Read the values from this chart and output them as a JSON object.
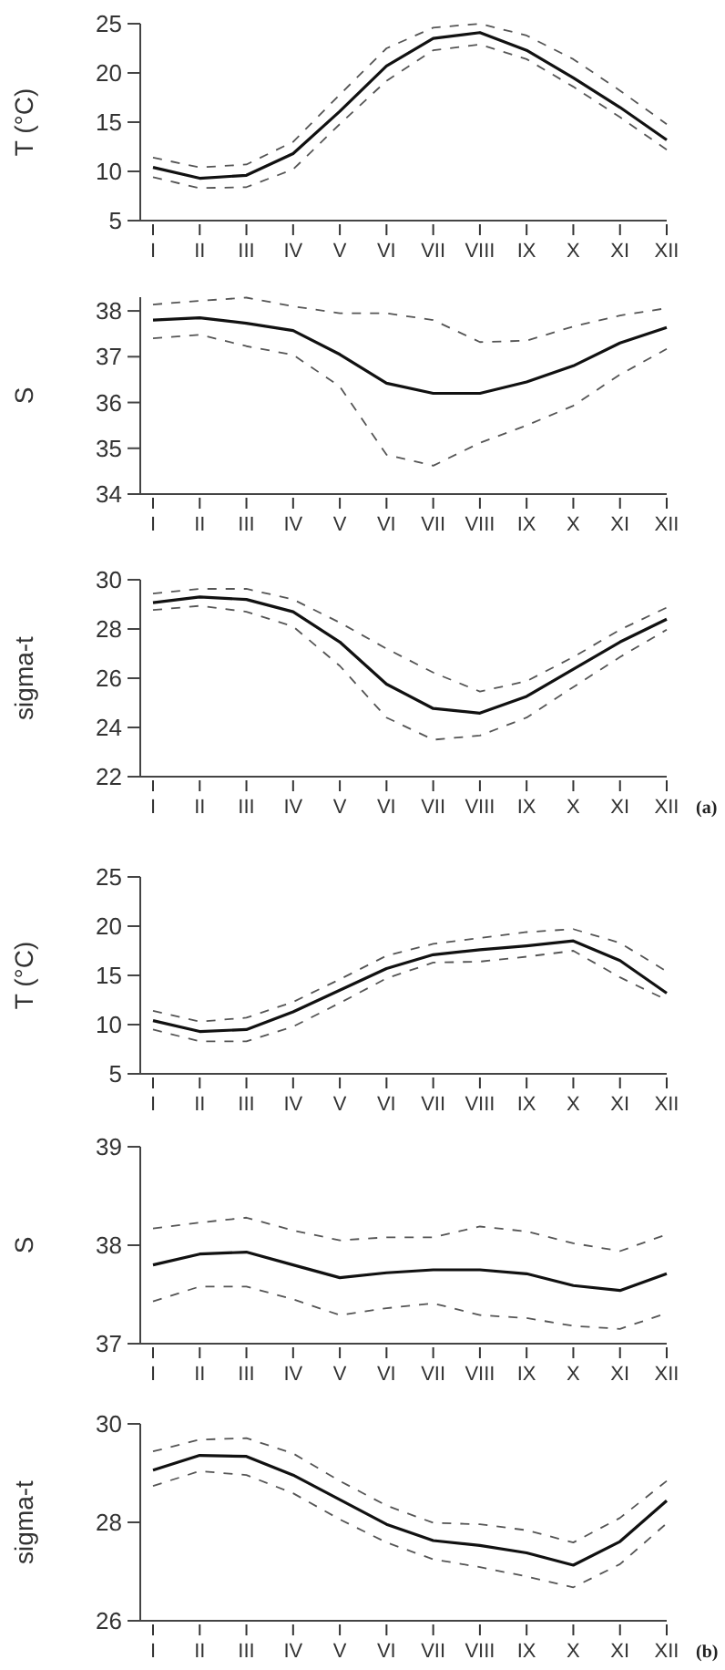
{
  "chart_data": [
    {
      "type": "line",
      "ylabel": "T (°C)",
      "categories": [
        "I",
        "II",
        "III",
        "IV",
        "V",
        "VI",
        "VII",
        "VIII",
        "IX",
        "X",
        "XI",
        "XII"
      ],
      "ylim": [
        5,
        25
      ],
      "yticks": [
        5,
        10,
        15,
        20,
        25
      ],
      "series": [
        {
          "color": "#111111",
          "line_style": "solid",
          "values": [
            10.4,
            9.3,
            9.6,
            11.8,
            16.1,
            20.7,
            23.5,
            24.1,
            22.3,
            19.5,
            16.5,
            13.2
          ]
        },
        {
          "color": "#555555",
          "line_style": "dashed",
          "values": [
            11.4,
            10.4,
            10.7,
            13,
            17.8,
            22.5,
            24.6,
            25,
            23.8,
            21.4,
            18.2,
            14.8
          ]
        },
        {
          "color": "#555555",
          "line_style": "dashed",
          "values": [
            9.4,
            8.3,
            8.4,
            10.2,
            14.8,
            19.2,
            22.3,
            22.9,
            21.4,
            18.6,
            15.5,
            12.2
          ]
        }
      ]
    },
    {
      "type": "line",
      "ylabel": "S",
      "categories": [
        "I",
        "II",
        "III",
        "IV",
        "V",
        "VI",
        "VII",
        "VIII",
        "IX",
        "X",
        "XI",
        "XII"
      ],
      "ylim": [
        34,
        38.3
      ],
      "yticks": [
        34,
        35,
        36,
        37,
        38
      ],
      "series": [
        {
          "color": "#111111",
          "line_style": "solid",
          "values": [
            37.8,
            37.85,
            37.73,
            37.57,
            37.05,
            36.42,
            36.2,
            36.2,
            36.45,
            36.8,
            37.3,
            37.64
          ]
        },
        {
          "color": "#555555",
          "line_style": "dashed",
          "values": [
            38.14,
            38.22,
            38.29,
            38.1,
            37.95,
            37.95,
            37.8,
            37.32,
            37.35,
            37.66,
            37.9,
            38.06
          ]
        },
        {
          "color": "#555555",
          "line_style": "dashed",
          "values": [
            37.4,
            37.48,
            37.23,
            37.04,
            36.35,
            34.86,
            34.62,
            35.12,
            35.5,
            35.93,
            36.61,
            37.17
          ]
        }
      ]
    },
    {
      "type": "line",
      "ylabel": "sigma-t",
      "categories": [
        "I",
        "II",
        "III",
        "IV",
        "V",
        "VI",
        "VII",
        "VIII",
        "IX",
        "X",
        "XI",
        "XII"
      ],
      "ylim": [
        22,
        30
      ],
      "yticks": [
        22,
        24,
        26,
        28,
        30
      ],
      "annotations": [
        "(a)"
      ],
      "series": [
        {
          "color": "#111111",
          "line_style": "solid",
          "values": [
            29.07,
            29.3,
            29.2,
            28.7,
            27.47,
            25.76,
            24.77,
            24.58,
            25.26,
            26.37,
            27.47,
            28.4
          ]
        },
        {
          "color": "#555555",
          "line_style": "dashed",
          "values": [
            29.44,
            29.63,
            29.63,
            29.2,
            28.26,
            27.2,
            26.23,
            25.46,
            25.88,
            26.86,
            27.97,
            28.87
          ]
        },
        {
          "color": "#555555",
          "line_style": "dashed",
          "values": [
            28.77,
            28.94,
            28.7,
            28.1,
            26.5,
            24.4,
            23.5,
            23.67,
            24.4,
            25.64,
            26.86,
            27.97
          ]
        }
      ]
    },
    {
      "type": "line",
      "ylabel": "T (°C)",
      "categories": [
        "I",
        "II",
        "III",
        "IV",
        "V",
        "VI",
        "VII",
        "VIII",
        "IX",
        "X",
        "XI",
        "XII"
      ],
      "ylim": [
        5,
        25
      ],
      "yticks": [
        5,
        10,
        15,
        20,
        25
      ],
      "series": [
        {
          "color": "#111111",
          "line_style": "solid",
          "values": [
            10.4,
            9.3,
            9.5,
            11.3,
            13.5,
            15.7,
            17.1,
            17.6,
            18,
            18.5,
            16.5,
            13.2
          ]
        },
        {
          "color": "#555555",
          "line_style": "dashed",
          "values": [
            11.4,
            10.3,
            10.7,
            12.3,
            14.6,
            17,
            18.2,
            18.8,
            19.4,
            19.7,
            18.3,
            15.4
          ]
        },
        {
          "color": "#555555",
          "line_style": "dashed",
          "values": [
            9.5,
            8.3,
            8.3,
            9.8,
            12.2,
            14.7,
            16.3,
            16.4,
            16.9,
            17.5,
            14.8,
            12.5
          ]
        }
      ]
    },
    {
      "type": "line",
      "ylabel": "S",
      "categories": [
        "I",
        "II",
        "III",
        "IV",
        "V",
        "VI",
        "VII",
        "VIII",
        "IX",
        "X",
        "XI",
        "XII"
      ],
      "ylim": [
        37,
        39
      ],
      "yticks": [
        37,
        38,
        39
      ],
      "series": [
        {
          "color": "#111111",
          "line_style": "solid",
          "values": [
            37.8,
            37.91,
            37.93,
            37.8,
            37.67,
            37.72,
            37.75,
            37.75,
            37.71,
            37.59,
            37.54,
            37.71
          ]
        },
        {
          "color": "#555555",
          "line_style": "dashed",
          "values": [
            38.17,
            38.23,
            38.28,
            38.15,
            38.05,
            38.08,
            38.08,
            38.19,
            38.14,
            38.02,
            37.94,
            38.11
          ]
        },
        {
          "color": "#555555",
          "line_style": "dashed",
          "values": [
            37.43,
            37.58,
            37.58,
            37.45,
            37.29,
            37.36,
            37.41,
            37.29,
            37.26,
            37.18,
            37.15,
            37.31
          ]
        }
      ]
    },
    {
      "type": "line",
      "ylabel": "sigma-t",
      "categories": [
        "I",
        "II",
        "III",
        "IV",
        "V",
        "VI",
        "VII",
        "VIII",
        "IX",
        "X",
        "XI",
        "XII"
      ],
      "ylim": [
        26,
        30
      ],
      "yticks": [
        26,
        28,
        30
      ],
      "annotations": [
        "(b)"
      ],
      "series": [
        {
          "color": "#111111",
          "line_style": "solid",
          "values": [
            29.06,
            29.36,
            29.34,
            28.96,
            28.46,
            27.96,
            27.63,
            27.53,
            27.38,
            27.13,
            27.61,
            28.44
          ]
        },
        {
          "color": "#555555",
          "line_style": "dashed",
          "values": [
            29.44,
            29.68,
            29.71,
            29.4,
            28.84,
            28.34,
            27.99,
            27.96,
            27.84,
            27.59,
            28.09,
            28.84
          ]
        },
        {
          "color": "#555555",
          "line_style": "dashed",
          "values": [
            28.74,
            29.04,
            28.96,
            28.59,
            28.06,
            27.59,
            27.25,
            27.09,
            26.9,
            26.68,
            27.15,
            27.98
          ]
        }
      ]
    }
  ]
}
